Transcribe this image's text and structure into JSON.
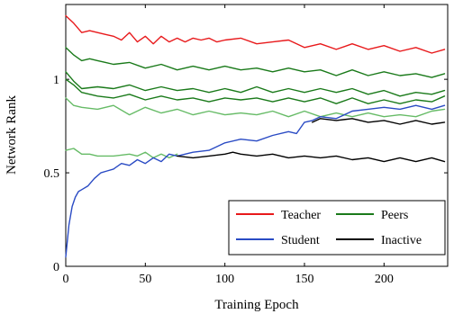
{
  "chart_data": {
    "type": "line",
    "xlabel": "Training Epoch",
    "ylabel": "Network Rank",
    "xlim": [
      0,
      240
    ],
    "ylim": [
      0,
      1.4
    ],
    "xticks": [
      0,
      50,
      100,
      150,
      200
    ],
    "yticks": [
      0,
      0.5,
      1
    ],
    "x_tick_labels": [
      "0",
      "50",
      "100",
      "150",
      "200"
    ],
    "y_tick_labels": [
      "0",
      "0.5",
      "1"
    ],
    "grid": false,
    "legend_position": "bottom-right",
    "legend": [
      {
        "label": "Teacher",
        "color": "#e8191b"
      },
      {
        "label": "Peers",
        "color": "#1a7a1a"
      },
      {
        "label": "Student",
        "color": "#2a4bc4"
      },
      {
        "label": "Inactive",
        "color": "#000000"
      }
    ],
    "series": [
      {
        "name": "Teacher",
        "color": "#e8191b",
        "x": [
          0,
          5,
          10,
          15,
          20,
          25,
          30,
          35,
          40,
          45,
          50,
          55,
          60,
          65,
          70,
          75,
          80,
          85,
          90,
          95,
          100,
          110,
          120,
          130,
          140,
          150,
          160,
          170,
          180,
          190,
          200,
          210,
          220,
          230,
          238
        ],
        "y": [
          1.34,
          1.3,
          1.25,
          1.26,
          1.25,
          1.24,
          1.23,
          1.21,
          1.25,
          1.2,
          1.23,
          1.19,
          1.23,
          1.2,
          1.22,
          1.2,
          1.22,
          1.21,
          1.22,
          1.2,
          1.21,
          1.22,
          1.19,
          1.2,
          1.21,
          1.17,
          1.19,
          1.16,
          1.19,
          1.16,
          1.18,
          1.15,
          1.17,
          1.14,
          1.16
        ]
      },
      {
        "name": "Peers",
        "color": "#1a7a1a",
        "x": [
          0,
          5,
          10,
          15,
          20,
          25,
          30,
          40,
          50,
          60,
          70,
          80,
          90,
          100,
          110,
          120,
          130,
          140,
          150,
          160,
          170,
          180,
          190,
          200,
          210,
          220,
          230,
          238
        ],
        "y": [
          1.17,
          1.13,
          1.1,
          1.11,
          1.1,
          1.09,
          1.08,
          1.09,
          1.06,
          1.08,
          1.05,
          1.07,
          1.05,
          1.07,
          1.05,
          1.06,
          1.04,
          1.06,
          1.04,
          1.05,
          1.02,
          1.05,
          1.02,
          1.04,
          1.02,
          1.03,
          1.01,
          1.03
        ]
      },
      {
        "name": "Peers",
        "color": "#1a7a1a",
        "x": [
          0,
          5,
          10,
          20,
          30,
          40,
          50,
          60,
          70,
          80,
          90,
          100,
          110,
          120,
          130,
          140,
          150,
          160,
          170,
          180,
          190,
          200,
          210,
          220,
          230,
          238
        ],
        "y": [
          1.04,
          0.99,
          0.95,
          0.96,
          0.95,
          0.97,
          0.94,
          0.96,
          0.94,
          0.95,
          0.93,
          0.95,
          0.93,
          0.96,
          0.93,
          0.95,
          0.93,
          0.95,
          0.93,
          0.95,
          0.92,
          0.94,
          0.91,
          0.93,
          0.92,
          0.94
        ]
      },
      {
        "name": "Peers",
        "color": "#1a7a1a",
        "x": [
          0,
          5,
          10,
          20,
          30,
          40,
          50,
          60,
          70,
          80,
          90,
          100,
          110,
          120,
          130,
          140,
          150,
          160,
          170,
          180,
          190,
          200,
          210,
          220,
          230,
          238
        ],
        "y": [
          1.0,
          0.97,
          0.93,
          0.91,
          0.9,
          0.92,
          0.89,
          0.91,
          0.89,
          0.9,
          0.88,
          0.9,
          0.89,
          0.9,
          0.88,
          0.9,
          0.88,
          0.9,
          0.87,
          0.9,
          0.87,
          0.89,
          0.87,
          0.89,
          0.88,
          0.91
        ]
      },
      {
        "name": "Peers",
        "color": "#66bb66",
        "x": [
          0,
          5,
          10,
          20,
          30,
          40,
          50,
          60,
          70,
          80,
          90,
          100,
          110,
          120,
          130,
          140,
          150,
          160,
          170,
          180,
          190,
          200,
          210,
          220,
          230,
          238
        ],
        "y": [
          0.9,
          0.86,
          0.85,
          0.84,
          0.86,
          0.81,
          0.85,
          0.82,
          0.84,
          0.81,
          0.83,
          0.81,
          0.82,
          0.81,
          0.83,
          0.8,
          0.83,
          0.8,
          0.82,
          0.8,
          0.82,
          0.8,
          0.81,
          0.8,
          0.83,
          0.84
        ]
      },
      {
        "name": "Peers",
        "color": "#66bb66",
        "x": [
          0,
          5,
          10,
          15,
          20,
          30,
          40,
          45,
          50,
          55,
          60,
          65,
          70
        ],
        "y": [
          0.62,
          0.63,
          0.6,
          0.6,
          0.59,
          0.59,
          0.6,
          0.59,
          0.61,
          0.58,
          0.6,
          0.58,
          0.6
        ]
      },
      {
        "name": "Student",
        "color": "#2a4bc4",
        "x": [
          0,
          2,
          4,
          6,
          8,
          10,
          14,
          18,
          22,
          26,
          30,
          35,
          40,
          45,
          50,
          55,
          60,
          65,
          70,
          75,
          80,
          90,
          100,
          110,
          120,
          130,
          140,
          145,
          150,
          155,
          160,
          170,
          180,
          190,
          200,
          210,
          220,
          230,
          238
        ],
        "y": [
          0.05,
          0.22,
          0.32,
          0.37,
          0.4,
          0.41,
          0.43,
          0.47,
          0.5,
          0.51,
          0.52,
          0.55,
          0.54,
          0.57,
          0.55,
          0.58,
          0.56,
          0.6,
          0.59,
          0.6,
          0.61,
          0.62,
          0.66,
          0.68,
          0.67,
          0.7,
          0.72,
          0.71,
          0.77,
          0.78,
          0.8,
          0.79,
          0.83,
          0.84,
          0.85,
          0.84,
          0.86,
          0.84,
          0.86
        ]
      },
      {
        "name": "Inactive",
        "color": "#000000",
        "x": [
          70,
          80,
          90,
          100,
          105,
          110,
          120,
          130,
          140,
          150,
          160,
          170,
          180,
          190,
          200,
          210,
          220,
          230,
          238
        ],
        "y": [
          0.59,
          0.58,
          0.59,
          0.6,
          0.61,
          0.6,
          0.59,
          0.6,
          0.58,
          0.59,
          0.58,
          0.59,
          0.57,
          0.58,
          0.56,
          0.58,
          0.56,
          0.58,
          0.56
        ]
      },
      {
        "name": "Inactive",
        "color": "#000000",
        "x": [
          155,
          160,
          170,
          180,
          190,
          200,
          210,
          220,
          230,
          238
        ],
        "y": [
          0.77,
          0.79,
          0.78,
          0.79,
          0.77,
          0.78,
          0.76,
          0.78,
          0.76,
          0.77
        ]
      }
    ]
  }
}
